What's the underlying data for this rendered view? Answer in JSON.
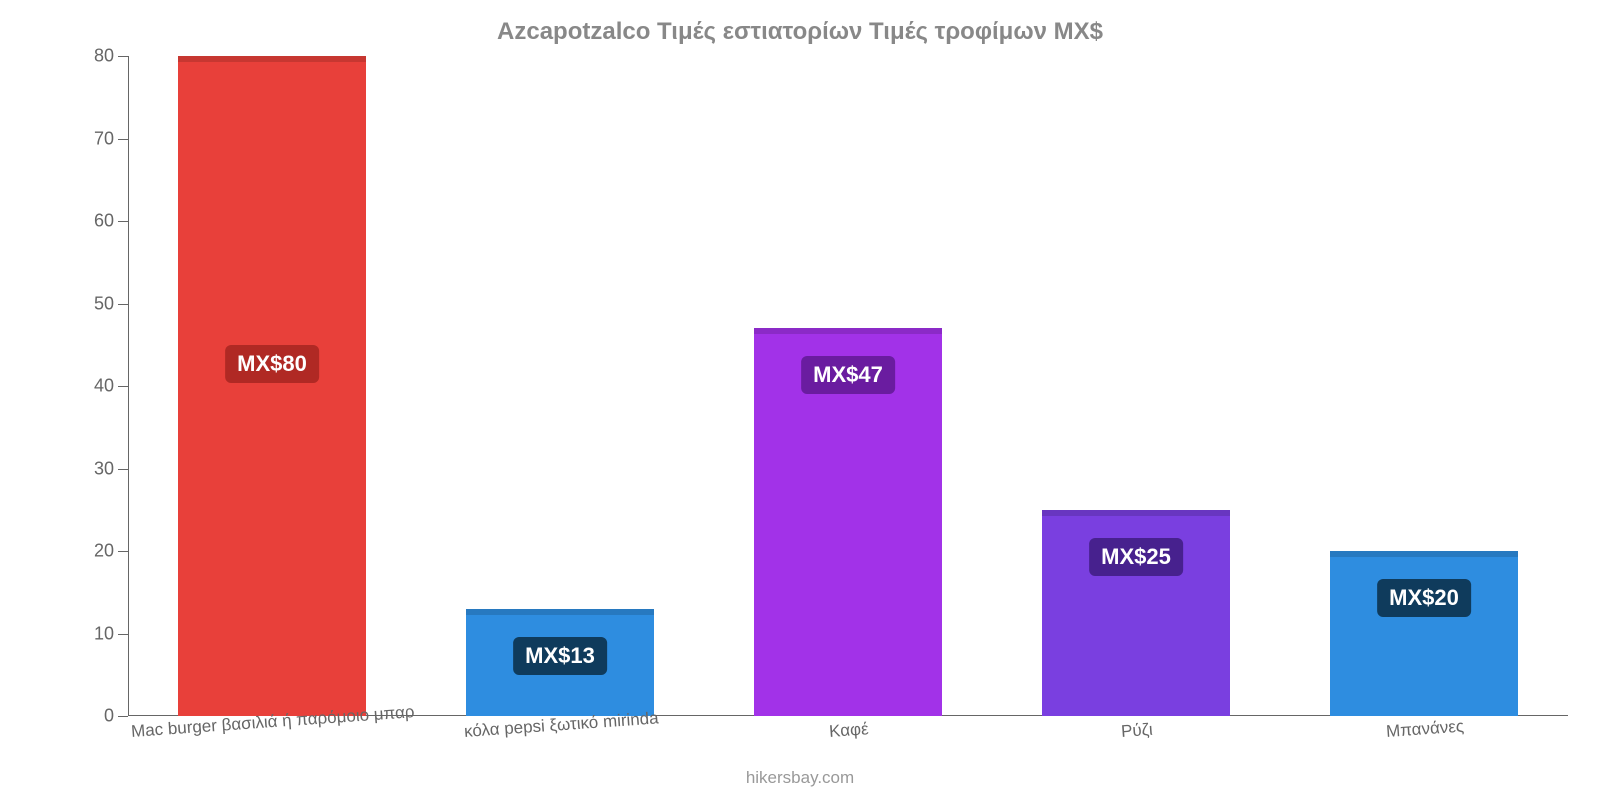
{
  "chart": {
    "type": "bar",
    "title": "Azcapotzalco Τιμές εστιατορίων Τιμές τροφίμων MX$",
    "title_color": "#888888",
    "title_fontsize": 24,
    "background_color": "#ffffff",
    "axis_color": "#666666",
    "tick_label_color": "#666666",
    "tick_fontsize": 18,
    "ylim": [
      0,
      80
    ],
    "yticks": [
      0,
      10,
      20,
      30,
      40,
      50,
      60,
      70,
      80
    ],
    "categories": [
      "Mac burger βασιλιά ή παρόμοιο μπαρ",
      "κόλα pepsi ξωτικό mirinda",
      "Καφέ",
      "Ρύζι",
      "Μπανάνες"
    ],
    "values": [
      80,
      13,
      47,
      25,
      20
    ],
    "bar_colors": [
      "#e8403a",
      "#2e8de0",
      "#a232e8",
      "#7a3fe0",
      "#2e8de0"
    ],
    "value_labels": [
      "MX$80",
      "MX$13",
      "MX$47",
      "MX$25",
      "MX$20"
    ],
    "label_bg_colors": [
      "#b02924",
      "#0f3b5c",
      "#6a1ca0",
      "#47218e",
      "#0f3b5c"
    ],
    "label_fontsize": 22,
    "bar_width_ratio": 0.65,
    "x_label_fontsize": 17,
    "x_label_rotation_deg": -4
  },
  "footer": {
    "text": "hikersbay.com",
    "color": "#999999",
    "fontsize": 17
  }
}
